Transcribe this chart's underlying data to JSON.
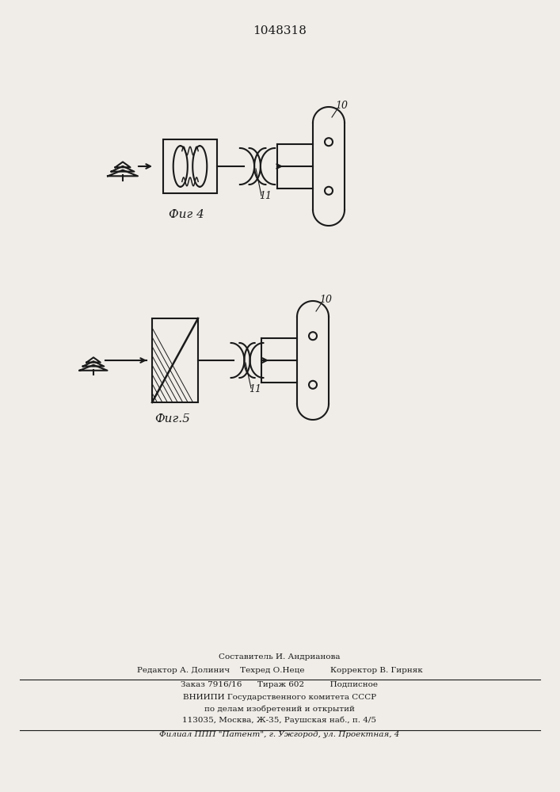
{
  "title": "1048318",
  "title_fontsize": 11,
  "fig4_label": "Фиг 4",
  "fig5_label": "Фиг.5",
  "label_10": "10",
  "label_11": "11",
  "footer_lines": [
    "Составитель И. Андрианова",
    "Редактор А. Долинич    Техред О.Неце          Корректор В. Гирняк",
    "Заказ 7916/16      Тираж 602          Подписное",
    "ВНИИПИ Государственного комитета СССР",
    "по делам изобретений и открытий",
    "113035, Москва, Ж-35, Раушская наб., п. 4/5",
    "Филиал ППП \"Патент\", г. Ужгород, ул. Проектная, 4"
  ],
  "bg_color": "#f0ede8",
  "line_color": "#1a1a1a",
  "line_width": 1.5
}
